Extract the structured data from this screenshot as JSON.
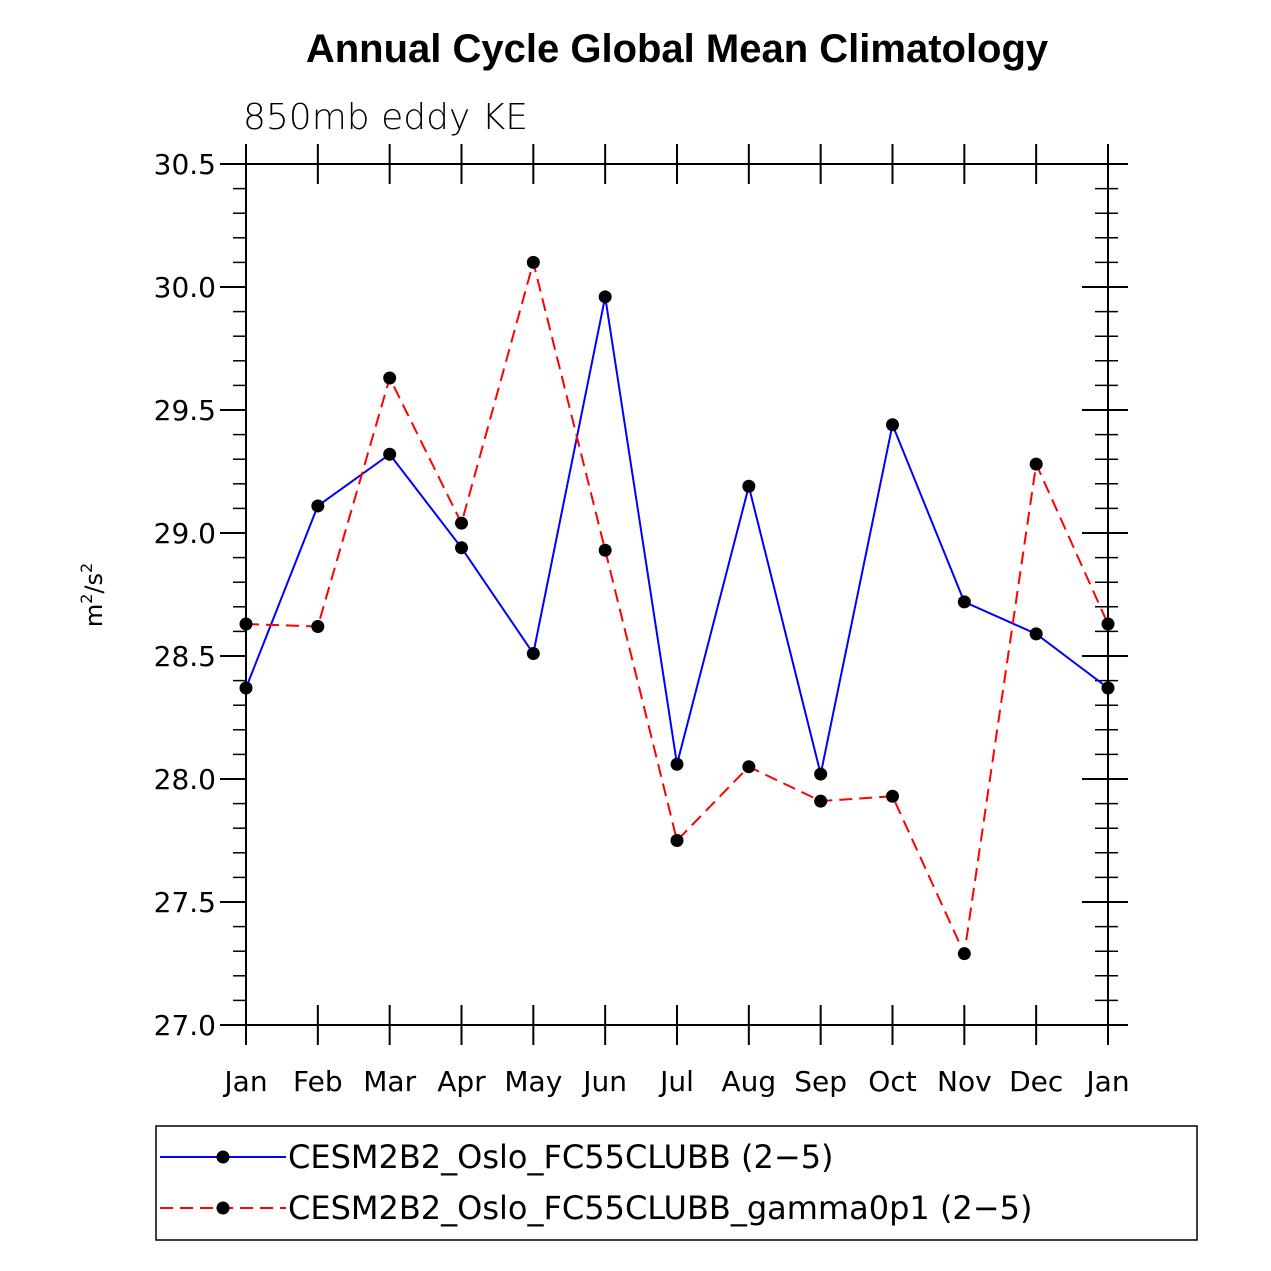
{
  "chart_data": {
    "type": "line",
    "title": "Annual Cycle Global Mean Climatology",
    "subtitle": "850mb eddy KE",
    "ylabel": "m",
    "ylabel_sup1": "2",
    "ylabel_mid": "/s",
    "ylabel_sup2": "2",
    "xlabel": "",
    "ylim": [
      27.0,
      30.5
    ],
    "yticks": [
      27.0,
      27.5,
      28.0,
      28.5,
      29.0,
      29.5,
      30.0,
      30.5
    ],
    "ytick_labels": [
      "27.0",
      "27.5",
      "28.0",
      "28.5",
      "29.0",
      "29.5",
      "30.0",
      "30.5"
    ],
    "categories": [
      "Jan",
      "Feb",
      "Mar",
      "Apr",
      "May",
      "Jun",
      "Jul",
      "Aug",
      "Sep",
      "Oct",
      "Nov",
      "Dec",
      "Jan"
    ],
    "series": [
      {
        "name": "CESM2B2_Oslo_FC55CLUBB (2−5)",
        "color": "#0000ff",
        "dash": "solid",
        "values": [
          28.37,
          29.11,
          29.32,
          28.94,
          28.51,
          29.96,
          28.06,
          29.19,
          28.02,
          29.44,
          28.72,
          28.59,
          28.37
        ]
      },
      {
        "name": "CESM2B2_Oslo_FC55CLUBB_gamma0p1 (2−5)",
        "color": "#ff0000",
        "dash": "dashed",
        "values": [
          28.63,
          28.62,
          29.63,
          29.04,
          30.1,
          28.93,
          27.75,
          28.05,
          27.91,
          27.93,
          27.29,
          29.28,
          28.63
        ]
      }
    ],
    "legend_position": "bottom"
  }
}
